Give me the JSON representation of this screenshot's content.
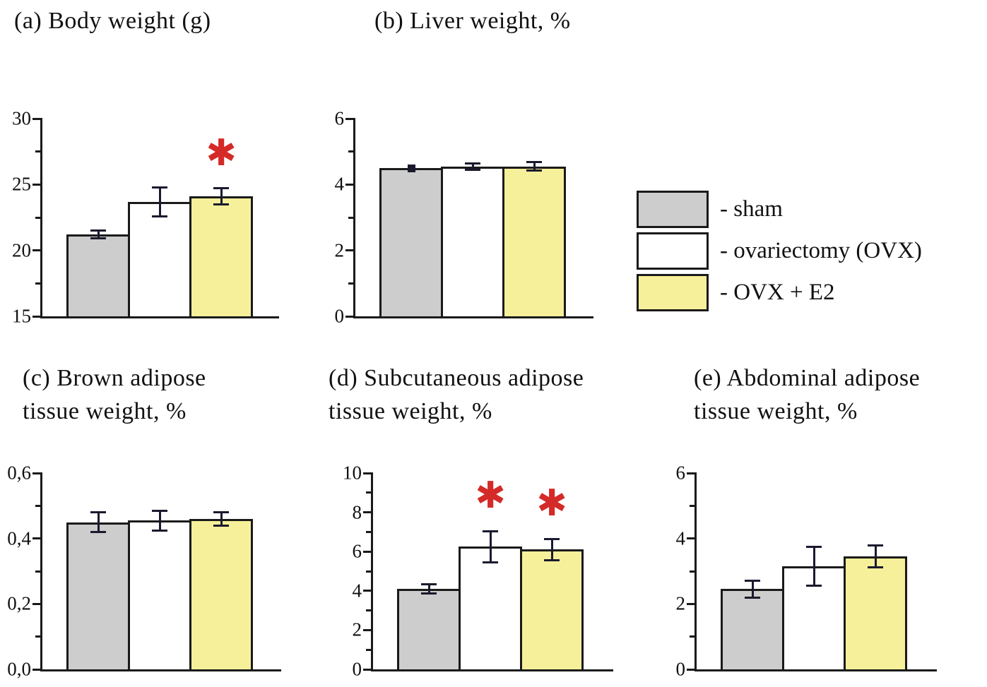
{
  "figure": {
    "significance_symbol": "✱",
    "colors": {
      "axis": "#1a1a1a",
      "error_bar": "#1a1a2e",
      "significance": "#d42a28",
      "background": "#ffffff"
    },
    "legend": {
      "position": "right",
      "items": [
        {
          "name": "sham",
          "label": "- sham",
          "color": "#cdcdcd"
        },
        {
          "name": "ovariectomy-ovx",
          "label": "- ovariectomy (OVX)",
          "color": "#ffffff"
        },
        {
          "name": "ovx-e2",
          "label": "- OVX + E2",
          "color": "#f7f09a"
        }
      ]
    }
  },
  "chart_data": [
    {
      "id": "a",
      "type": "bar",
      "title": "(a) Body weight (g)",
      "title_line1": "(a) Body weight (g)",
      "title_line2": "",
      "categories": [
        "sham",
        "ovariectomy (OVX)",
        "OVX + E2"
      ],
      "values": [
        21.2,
        23.7,
        24.1
      ],
      "errors": [
        0.3,
        1.1,
        0.6
      ],
      "significant": [
        false,
        false,
        true
      ],
      "ylim": [
        15,
        30
      ],
      "grid": false,
      "yticks": [
        {
          "label": "15",
          "value": 15
        },
        {
          "label": "20",
          "value": 20
        },
        {
          "label": "25",
          "value": 25
        },
        {
          "label": "30",
          "value": 30
        }
      ],
      "minor_ticks": [
        17.5,
        22.5,
        27.5
      ]
    },
    {
      "id": "b",
      "type": "bar",
      "title": "(b) Liver weight, %",
      "title_line1": "(b) Liver weight, %",
      "title_line2": "",
      "categories": [
        "sham",
        "ovariectomy (OVX)",
        "OVX + E2"
      ],
      "values": [
        4.5,
        4.55,
        4.55
      ],
      "errors": [
        0.05,
        0.1,
        0.13
      ],
      "significant": [
        false,
        false,
        false
      ],
      "ylim": [
        0,
        6
      ],
      "grid": false,
      "yticks": [
        {
          "label": "0",
          "value": 0
        },
        {
          "label": "2",
          "value": 2
        },
        {
          "label": "4",
          "value": 4
        },
        {
          "label": "6",
          "value": 6
        }
      ],
      "minor_ticks": [
        1,
        3,
        5
      ]
    },
    {
      "id": "c",
      "type": "bar",
      "title": "(c) Brown adipose tissue weight, %",
      "title_line1": "(c) Brown adipose",
      "title_line2": "tissue weight, %",
      "categories": [
        "sham",
        "ovariectomy (OVX)",
        "OVX + E2"
      ],
      "values": [
        0.45,
        0.455,
        0.46
      ],
      "errors": [
        0.03,
        0.03,
        0.02
      ],
      "significant": [
        false,
        false,
        false
      ],
      "ylim": [
        0,
        0.6
      ],
      "grid": false,
      "yticks": [
        {
          "label": "0,0",
          "value": 0
        },
        {
          "label": "0,2",
          "value": 0.2
        },
        {
          "label": "0,4",
          "value": 0.4
        },
        {
          "label": "0,6",
          "value": 0.6
        }
      ],
      "minor_ticks": [
        0.1,
        0.3,
        0.5
      ]
    },
    {
      "id": "d",
      "type": "bar",
      "title": "(d) Subcutaneous adipose tissue weight, %",
      "title_line1": "(d) Subcutaneous adipose",
      "title_line2": "tissue weight, %",
      "categories": [
        "sham",
        "ovariectomy (OVX)",
        "OVX + E2"
      ],
      "values": [
        4.1,
        6.25,
        6.1
      ],
      "errors": [
        0.25,
        0.8,
        0.55
      ],
      "significant": [
        false,
        true,
        true
      ],
      "ylim": [
        0,
        10
      ],
      "grid": false,
      "yticks": [
        {
          "label": "0",
          "value": 0
        },
        {
          "label": "2",
          "value": 2
        },
        {
          "label": "4",
          "value": 4
        },
        {
          "label": "6",
          "value": 6
        },
        {
          "label": "8",
          "value": 8
        },
        {
          "label": "10",
          "value": 10
        }
      ],
      "minor_ticks": [
        1,
        3,
        5,
        7,
        9
      ]
    },
    {
      "id": "e",
      "type": "bar",
      "title": "(e) Abdominal adipose tissue weight, %",
      "title_line1": "(e) Abdominal adipose",
      "title_line2": "tissue weight, %",
      "categories": [
        "sham",
        "ovariectomy (OVX)",
        "OVX + E2"
      ],
      "values": [
        2.45,
        3.15,
        3.45
      ],
      "errors": [
        0.25,
        0.6,
        0.33
      ],
      "significant": [
        false,
        false,
        false
      ],
      "ylim": [
        0,
        6
      ],
      "grid": false,
      "yticks": [
        {
          "label": "0",
          "value": 0
        },
        {
          "label": "2",
          "value": 2
        },
        {
          "label": "4",
          "value": 4
        },
        {
          "label": "6",
          "value": 6
        }
      ],
      "minor_ticks": [
        1,
        3,
        5
      ]
    }
  ]
}
